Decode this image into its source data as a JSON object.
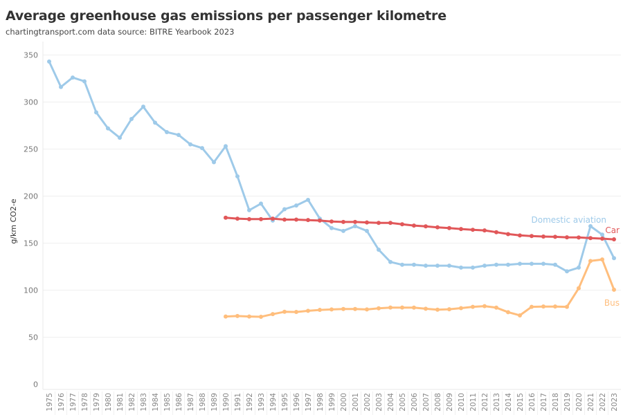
{
  "header": {
    "title": "Average greenhouse gas emissions per passenger kilometre",
    "subtitle": "chartingtransport.com  data source: BITRE Yearbook 2023"
  },
  "chart_data": {
    "type": "line",
    "title": "Average greenhouse gas emissions per passenger kilometre",
    "subtitle": "chartingtransport.com  data source: BITRE Yearbook 2023",
    "xlabel": "",
    "ylabel": "g/km CO2-e",
    "ylim": [
      0,
      350
    ],
    "yticks": [
      0,
      50,
      100,
      150,
      200,
      250,
      300,
      350
    ],
    "grid": true,
    "legend": "inline labels at right end of each series",
    "x": [
      1975,
      1976,
      1977,
      1978,
      1979,
      1980,
      1981,
      1982,
      1983,
      1984,
      1985,
      1986,
      1987,
      1988,
      1989,
      1990,
      1991,
      1992,
      1993,
      1994,
      1995,
      1996,
      1997,
      1998,
      1999,
      2000,
      2001,
      2002,
      2003,
      2004,
      2005,
      2006,
      2007,
      2008,
      2009,
      2010,
      2011,
      2012,
      2013,
      2014,
      2015,
      2016,
      2017,
      2018,
      2019,
      2020,
      2021,
      2022,
      2023
    ],
    "series": [
      {
        "name": "Domestic aviation",
        "color": "#9ecae9",
        "values": [
          343,
          316,
          326,
          322,
          289,
          272,
          262,
          282,
          295,
          278,
          268,
          265,
          255,
          251,
          236,
          253,
          221,
          185,
          192,
          174,
          186,
          190,
          196,
          176,
          166,
          163,
          168,
          163,
          143,
          130,
          127,
          127,
          126,
          126,
          126,
          124,
          124,
          126,
          127,
          127,
          128,
          128,
          128,
          127,
          120,
          124,
          168,
          159,
          134
        ]
      },
      {
        "name": "Car",
        "color": "#e15759",
        "values": [
          null,
          null,
          null,
          null,
          null,
          null,
          null,
          null,
          null,
          null,
          null,
          null,
          null,
          null,
          null,
          177,
          176,
          175.5,
          175.5,
          176,
          175,
          175,
          174.5,
          174,
          173,
          172.5,
          172.5,
          172,
          171.5,
          171.5,
          170,
          168.7,
          167.8,
          166.8,
          166,
          165,
          164.2,
          163.5,
          161.6,
          159.6,
          158.2,
          157.5,
          157,
          156.7,
          156.2,
          156,
          155.3,
          154.8,
          154
        ]
      },
      {
        "name": "Bus",
        "color": "#ffbe7d",
        "values": [
          null,
          null,
          null,
          null,
          null,
          null,
          null,
          null,
          null,
          null,
          null,
          null,
          null,
          null,
          null,
          72,
          72.5,
          72,
          71.7,
          74.5,
          77,
          76.8,
          78,
          79,
          79.5,
          80,
          80,
          79.5,
          80.7,
          81.5,
          81.5,
          81.4,
          80.2,
          79.2,
          79.7,
          80.9,
          82.3,
          83,
          81.4,
          76.6,
          73.2,
          82.3,
          82.6,
          82.6,
          82.3,
          102,
          131,
          132.6,
          100.5
        ]
      }
    ]
  }
}
